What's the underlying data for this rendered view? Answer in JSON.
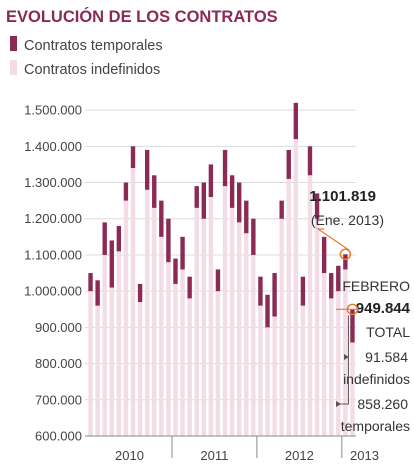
{
  "chart_data": {
    "type": "bar",
    "title": "EVOLUCIÓN DE LOS CONTRATOS",
    "xlabel": "",
    "ylabel": "",
    "ylim": [
      600000,
      1550000
    ],
    "yticks": [
      "1.500.000",
      "1.400.000",
      "1.300.000",
      "1.200.000",
      "1.100.000",
      "1.000.000",
      "900.000",
      "800.000",
      "700.000",
      "600.000"
    ],
    "ytick_values": [
      1500000,
      1400000,
      1300000,
      1200000,
      1100000,
      1000000,
      900000,
      800000,
      700000,
      600000
    ],
    "xticks": [
      "2010",
      "2011",
      "2012",
      "2013"
    ],
    "grid": true,
    "legend_position": "top-left",
    "colors": {
      "temporales": "#8b2a55",
      "indefinidos": "#f2dce6",
      "accent": "#e8782c",
      "grid": "#dcdcdc"
    },
    "series": [
      {
        "name": "Contratos temporales",
        "key": "temporales"
      },
      {
        "name": "Contratos indefinidos",
        "key": "indefinidos"
      }
    ],
    "months": [
      {
        "period": "2010-01",
        "total": 1050000,
        "indefinidos": 1000000
      },
      {
        "period": "2010-02",
        "total": 1030000,
        "indefinidos": 960000
      },
      {
        "period": "2010-03",
        "total": 1190000,
        "indefinidos": 1100000
      },
      {
        "period": "2010-04",
        "total": 1140000,
        "indefinidos": 1010000
      },
      {
        "period": "2010-05",
        "total": 1180000,
        "indefinidos": 1110000
      },
      {
        "period": "2010-06",
        "total": 1300000,
        "indefinidos": 1250000
      },
      {
        "period": "2010-07",
        "total": 1400000,
        "indefinidos": 1340000
      },
      {
        "period": "2010-08",
        "total": 1020000,
        "indefinidos": 970000
      },
      {
        "period": "2010-09",
        "total": 1390000,
        "indefinidos": 1280000
      },
      {
        "period": "2010-10",
        "total": 1320000,
        "indefinidos": 1230000
      },
      {
        "period": "2010-11",
        "total": 1250000,
        "indefinidos": 1150000
      },
      {
        "period": "2010-12",
        "total": 1200000,
        "indefinidos": 1080000
      },
      {
        "period": "2011-01",
        "total": 1090000,
        "indefinidos": 1020000
      },
      {
        "period": "2011-02",
        "total": 1150000,
        "indefinidos": 1060000
      },
      {
        "period": "2011-03",
        "total": 1040000,
        "indefinidos": 980000
      },
      {
        "period": "2011-04",
        "total": 1290000,
        "indefinidos": 1230000
      },
      {
        "period": "2011-05",
        "total": 1300000,
        "indefinidos": 1200000
      },
      {
        "period": "2011-06",
        "total": 1350000,
        "indefinidos": 1260000
      },
      {
        "period": "2011-07",
        "total": 1060000,
        "indefinidos": 1000000
      },
      {
        "period": "2011-08",
        "total": 1390000,
        "indefinidos": 1290000
      },
      {
        "period": "2011-09",
        "total": 1320000,
        "indefinidos": 1230000
      },
      {
        "period": "2011-10",
        "total": 1300000,
        "indefinidos": 1190000
      },
      {
        "period": "2011-11",
        "total": 1250000,
        "indefinidos": 1160000
      },
      {
        "period": "2011-12",
        "total": 1200000,
        "indefinidos": 1100000
      },
      {
        "period": "2012-01",
        "total": 1040000,
        "indefinidos": 960000
      },
      {
        "period": "2012-02",
        "total": 990000,
        "indefinidos": 900000
      },
      {
        "period": "2012-03",
        "total": 1050000,
        "indefinidos": 930000
      },
      {
        "period": "2012-04",
        "total": 1250000,
        "indefinidos": 1200000
      },
      {
        "period": "2012-05",
        "total": 1390000,
        "indefinidos": 1310000
      },
      {
        "period": "2012-06",
        "total": 1520000,
        "indefinidos": 1420000
      },
      {
        "period": "2012-07",
        "total": 1040000,
        "indefinidos": 960000
      },
      {
        "period": "2012-08",
        "total": 1400000,
        "indefinidos": 1320000
      },
      {
        "period": "2012-09",
        "total": 1270000,
        "indefinidos": 1200000
      },
      {
        "period": "2012-10",
        "total": 1150000,
        "indefinidos": 1050000
      },
      {
        "period": "2012-11",
        "total": 1050000,
        "indefinidos": 980000
      },
      {
        "period": "2012-12",
        "total": 1070000,
        "indefinidos": 1000000
      },
      {
        "period": "2013-01",
        "total": 1101819,
        "indefinidos": 1060000
      },
      {
        "period": "2013-02",
        "total": 949844,
        "indefinidos": 858260
      }
    ],
    "annotations": {
      "jan_value": "1.101.819",
      "jan_label": "(Ene. 2013)",
      "feb_label": "FEBRERO",
      "feb_value": "949.844",
      "total_label": "TOTAL",
      "indef_value": "91.584",
      "indef_label": "indefinidos",
      "temp_value": "858.260",
      "temp_label": "temporales"
    }
  }
}
